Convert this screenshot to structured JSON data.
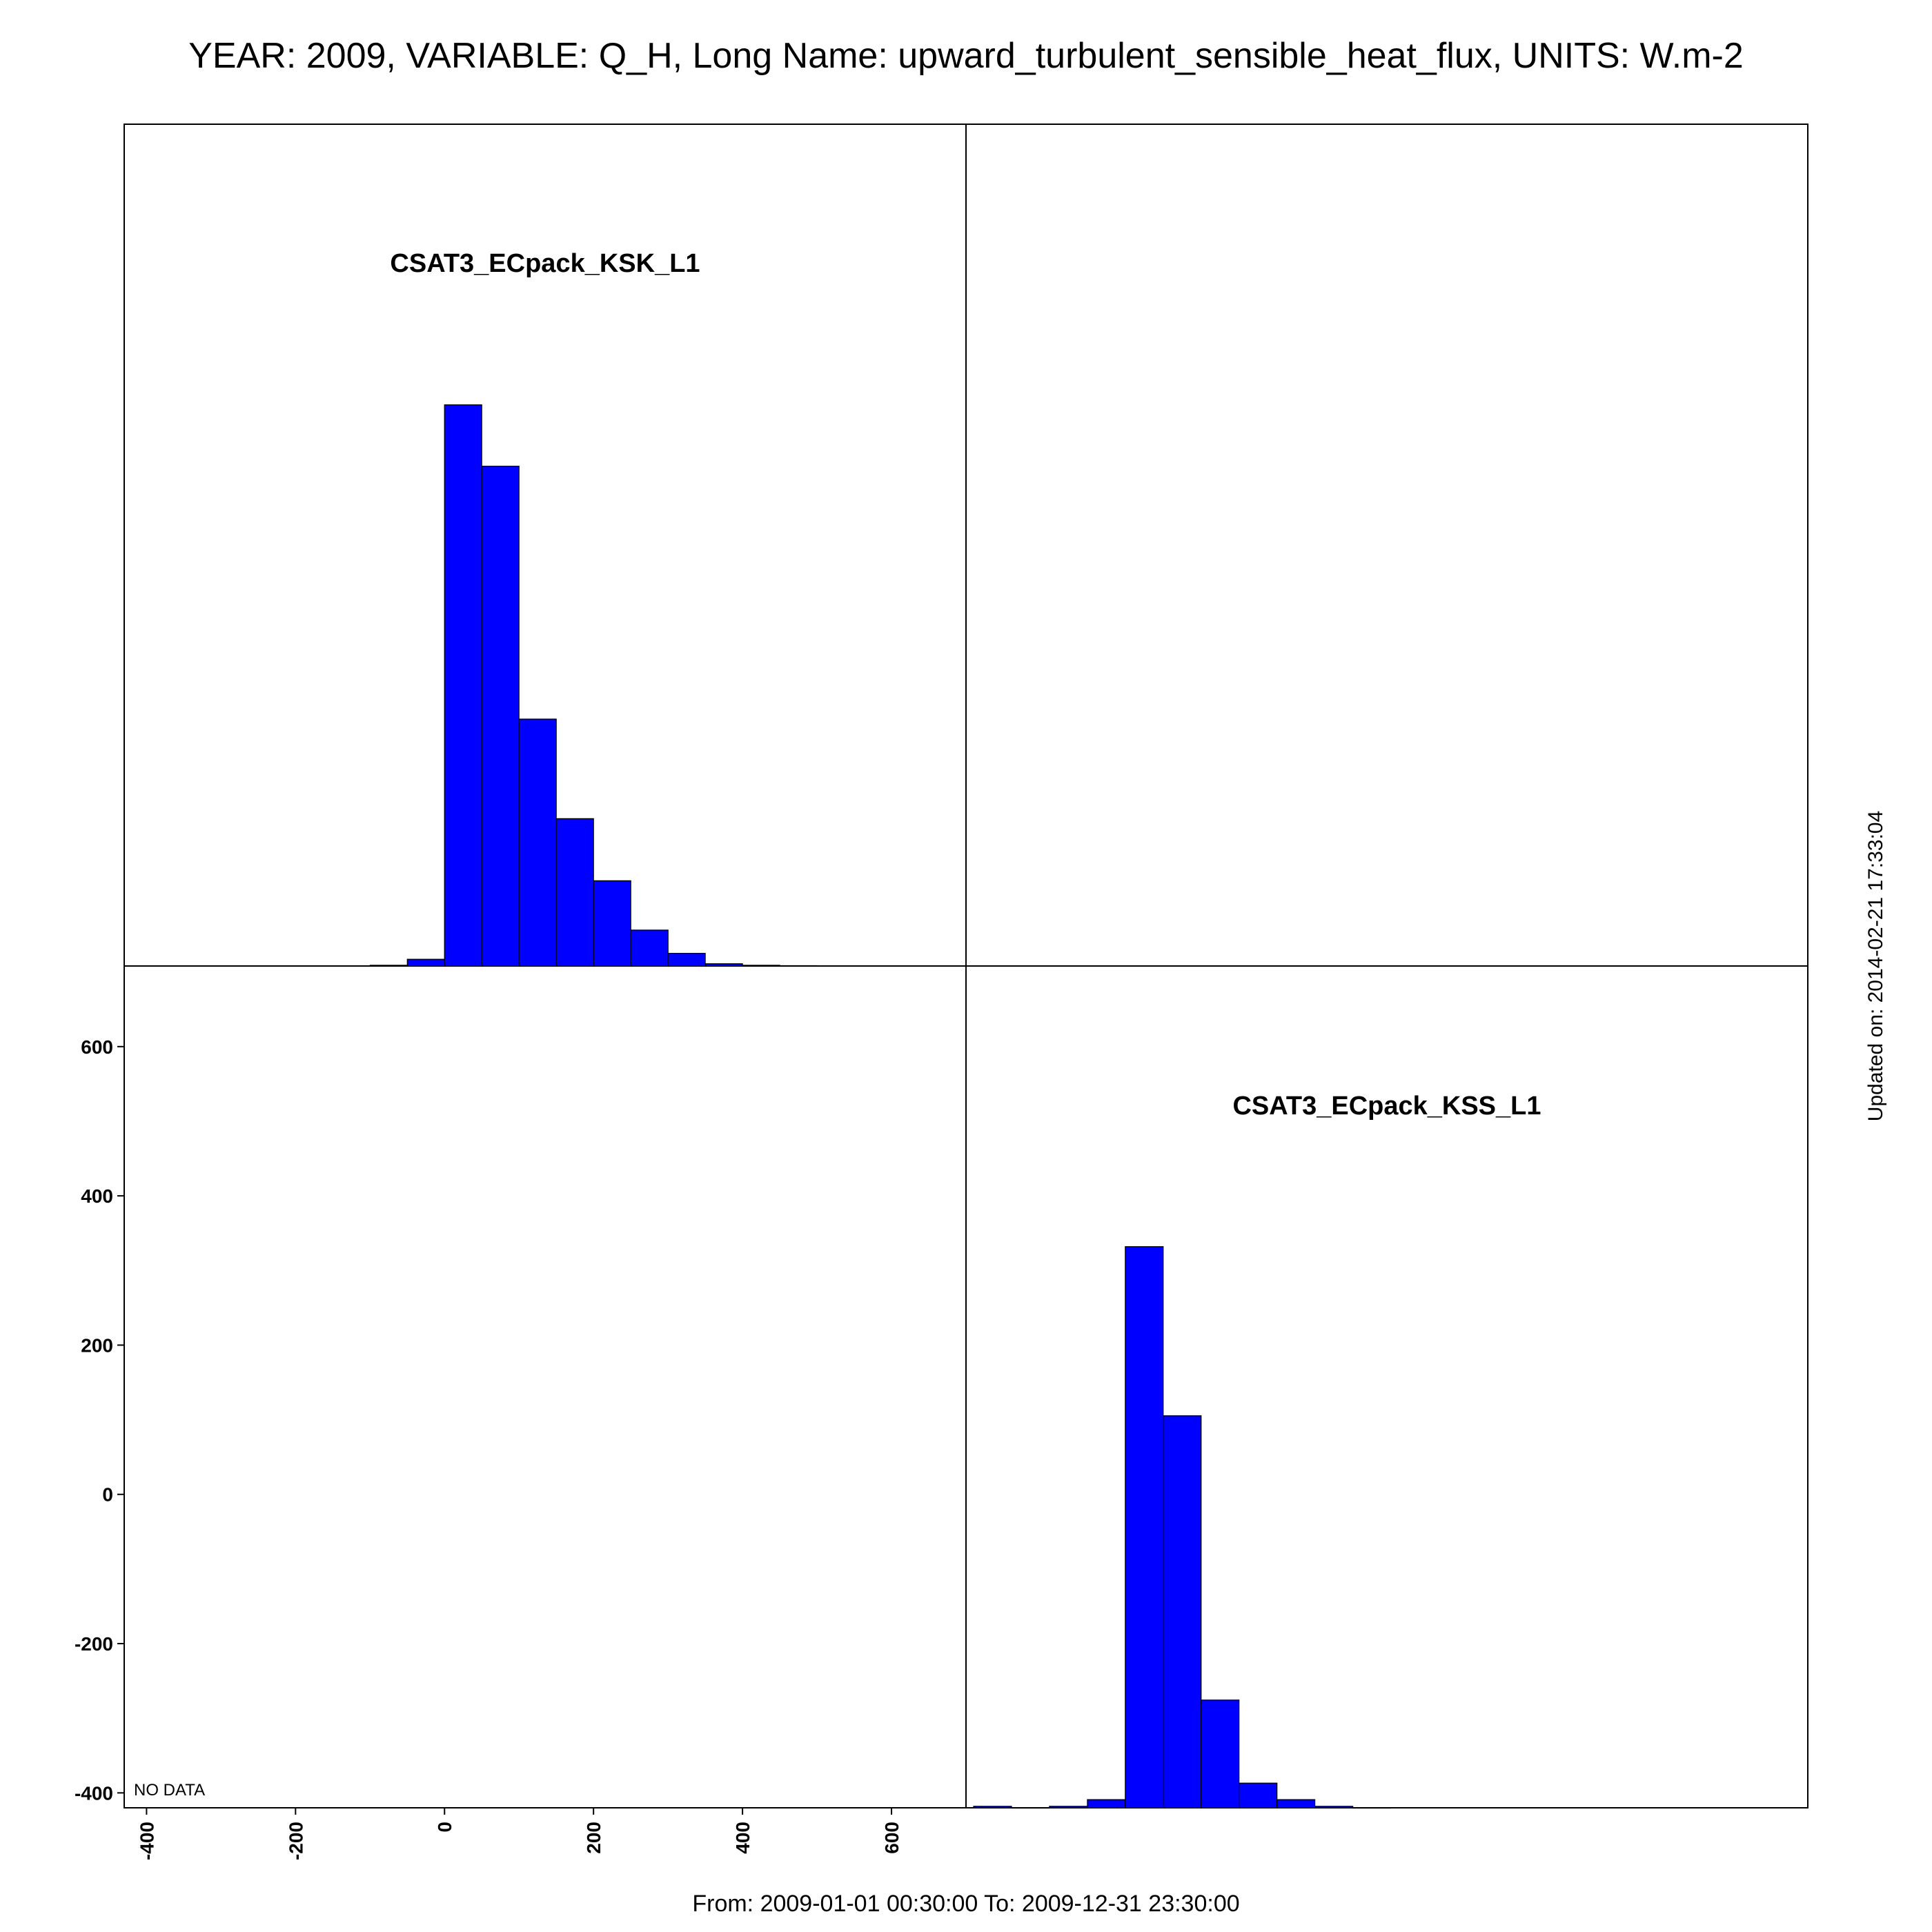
{
  "header": {
    "title": "YEAR: 2009, VARIABLE: Q_H, Long Name: upward_turbulent_sensible_heat_flux, UNITS: W.m-2"
  },
  "footer": {
    "period": "From: 2009-01-01 00:30:00 To: 2009-12-31 23:30:00"
  },
  "side_note": "Updated on: 2014-02-21 17:33:04",
  "colors": {
    "bar_fill": "#0000ff",
    "bar_stroke": "#000000",
    "frame": "#000000"
  },
  "chart_data": [
    {
      "type": "bar",
      "panel": "top-left",
      "title": "CSAT3_ECpack_KSK_L1",
      "bin_width": 50,
      "bin_starts": [
        -100,
        -50,
        0,
        50,
        100,
        150,
        200,
        250,
        300,
        350,
        400,
        450
      ],
      "values": [
        0.1,
        0.9,
        75.0,
        66.8,
        33.0,
        19.7,
        11.4,
        4.8,
        1.7,
        0.3,
        0.1,
        0.05
      ],
      "xlim": [
        -430,
        700
      ],
      "ylim": [
        0,
        112.5
      ]
    },
    {
      "type": "bar",
      "panel": "bottom-right",
      "title": "CSAT3_ECpack_KSS_L1",
      "bin_width": 50,
      "bin_starts": [
        -400,
        -350,
        -300,
        -250,
        -200,
        -150,
        -100,
        -50,
        0,
        50,
        100
      ],
      "values": [
        0.2,
        0,
        0.2,
        1.1,
        75.0,
        52.4,
        14.4,
        3.3,
        1.1,
        0.2,
        0
      ],
      "xlim": [
        -410,
        700
      ],
      "ylim": [
        0,
        112.5
      ]
    },
    {
      "type": "scatter",
      "panel": "bottom-left",
      "annotation": "NO DATA",
      "xlim": [
        -430,
        700
      ],
      "ylim": [
        -420,
        708
      ],
      "x_ticks": [
        -400,
        -200,
        0,
        200,
        400,
        600
      ],
      "y_ticks": [
        -400,
        -200,
        0,
        200,
        400,
        600
      ]
    }
  ]
}
